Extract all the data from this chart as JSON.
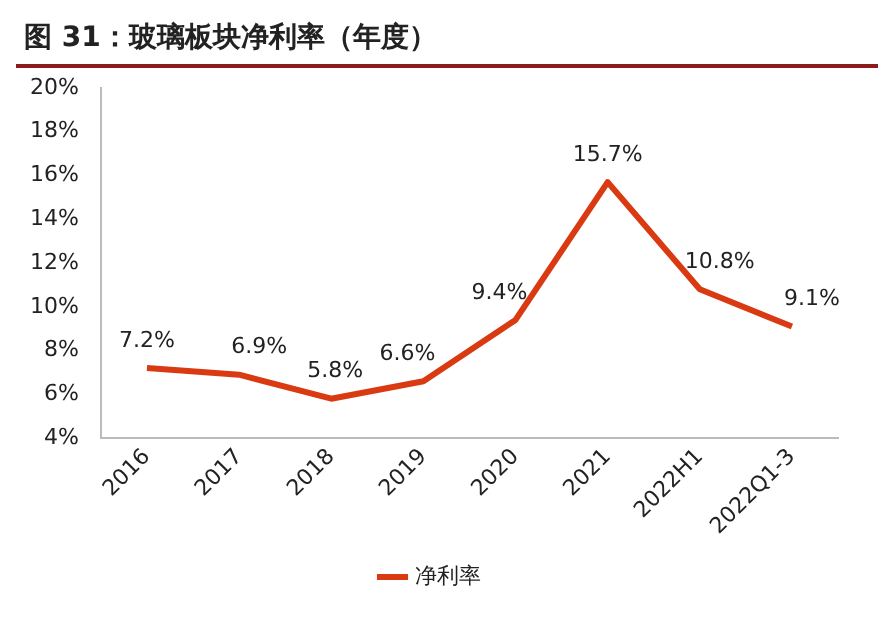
{
  "chart_data": {
    "type": "line",
    "title": "图 31：玻璃板块净利率（年度）",
    "categories": [
      "2016",
      "2017",
      "2018",
      "2019",
      "2020",
      "2021",
      "2022H1",
      "2022Q1-3"
    ],
    "series": [
      {
        "name": "净利率",
        "color": "#d93a12",
        "values": [
          7.2,
          6.9,
          5.8,
          6.6,
          9.4,
          15.7,
          10.8,
          9.1
        ],
        "value_labels": [
          "7.2%",
          "6.9%",
          "5.8%",
          "6.6%",
          "9.4%",
          "15.7%",
          "10.8%",
          "9.1%"
        ]
      }
    ],
    "ylim": [
      4,
      20
    ],
    "yticks": [
      {
        "value": 4,
        "label": "4%"
      },
      {
        "value": 6,
        "label": "6%"
      },
      {
        "value": 8,
        "label": "8%"
      },
      {
        "value": 10,
        "label": "10%"
      },
      {
        "value": 12,
        "label": "12%"
      },
      {
        "value": 14,
        "label": "14%"
      },
      {
        "value": 16,
        "label": "16%"
      },
      {
        "value": 18,
        "label": "18%"
      },
      {
        "value": 20,
        "label": "20%"
      }
    ],
    "grid": false,
    "legend": "bottom",
    "marker": "none",
    "line_style": "solid"
  }
}
